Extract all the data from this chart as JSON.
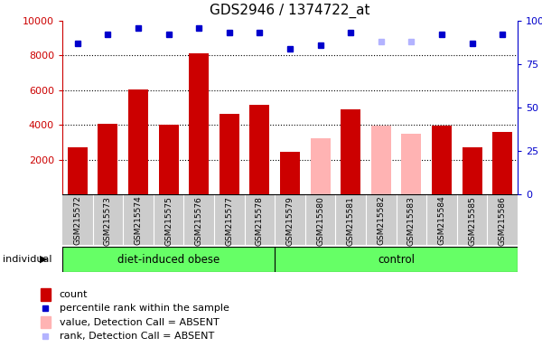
{
  "title": "GDS2946 / 1374722_at",
  "samples": [
    "GSM215572",
    "GSM215573",
    "GSM215574",
    "GSM215575",
    "GSM215576",
    "GSM215577",
    "GSM215578",
    "GSM215579",
    "GSM215580",
    "GSM215581",
    "GSM215582",
    "GSM215583",
    "GSM215584",
    "GSM215585",
    "GSM215586"
  ],
  "group1_label": "diet-induced obese",
  "group1_indices": [
    0,
    1,
    2,
    3,
    4,
    5,
    6
  ],
  "group2_label": "control",
  "group2_indices": [
    7,
    8,
    9,
    10,
    11,
    12,
    13,
    14
  ],
  "bar_values": [
    2700,
    4050,
    6050,
    4000,
    8150,
    4650,
    5150,
    2450,
    3250,
    4900,
    3950,
    3500,
    3950,
    2700,
    3600
  ],
  "bar_absent": [
    false,
    false,
    false,
    false,
    false,
    false,
    false,
    false,
    true,
    false,
    true,
    true,
    false,
    false,
    false
  ],
  "rank_values": [
    87,
    92,
    96,
    92,
    96,
    93,
    93,
    84,
    86,
    93,
    88,
    88,
    92,
    87,
    92
  ],
  "rank_absent": [
    false,
    false,
    false,
    false,
    false,
    false,
    false,
    false,
    false,
    false,
    true,
    true,
    false,
    false,
    false
  ],
  "bar_color_present": "#cc0000",
  "bar_color_absent": "#ffb3b3",
  "rank_color_present": "#0000cc",
  "rank_color_absent": "#b3b3ff",
  "ylim_left": [
    0,
    10000
  ],
  "ylim_right": [
    0,
    100
  ],
  "yticks_left": [
    2000,
    4000,
    6000,
    8000,
    10000
  ],
  "yticks_right": [
    0,
    25,
    50,
    75,
    100
  ],
  "group_color": "#66ff66",
  "col_bg_color": "#cccccc",
  "legend_items": [
    {
      "label": "count",
      "color": "#cc0000",
      "type": "rect"
    },
    {
      "label": "percentile rank within the sample",
      "color": "#0000cc",
      "type": "square"
    },
    {
      "label": "value, Detection Call = ABSENT",
      "color": "#ffb3b3",
      "type": "rect"
    },
    {
      "label": "rank, Detection Call = ABSENT",
      "color": "#b3b3ff",
      "type": "square"
    }
  ]
}
